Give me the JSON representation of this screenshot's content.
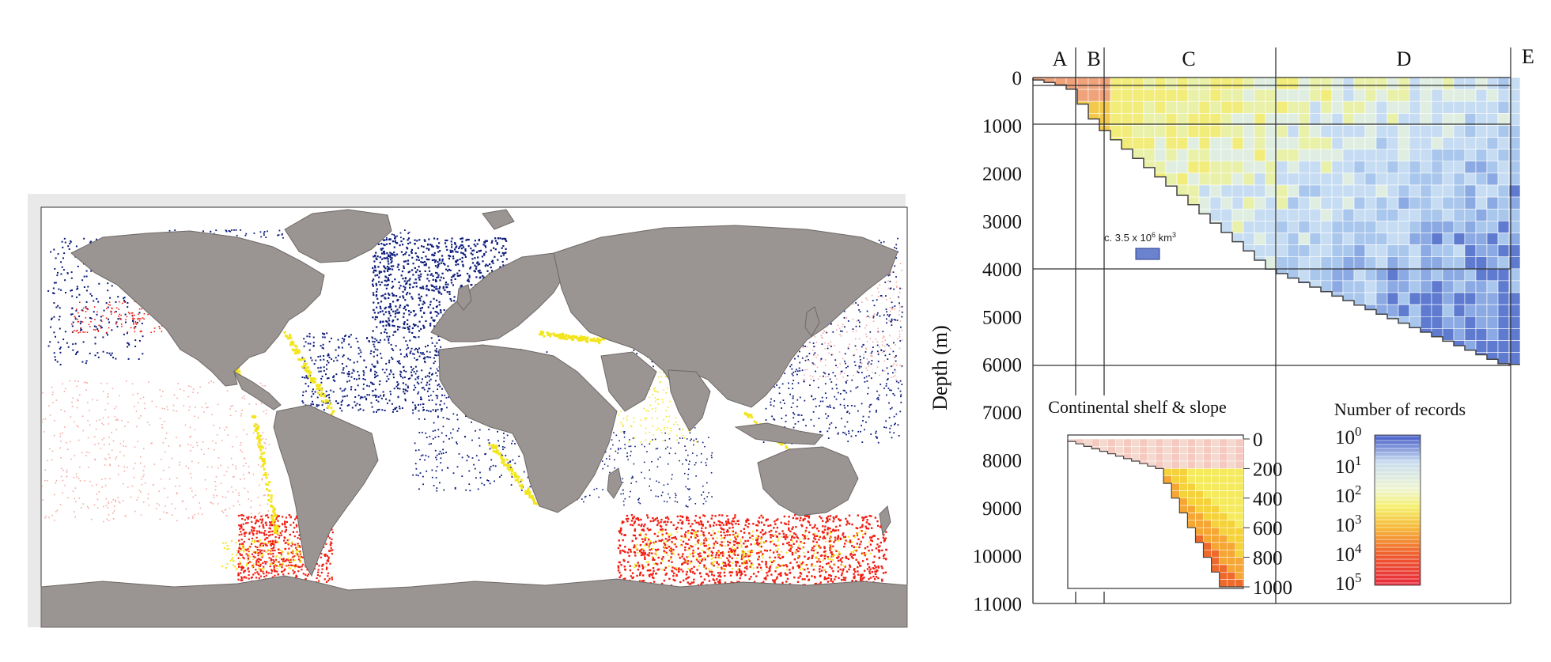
{
  "map": {
    "legend_colors": {
      "ocean": "#ffffff",
      "land": "#9a9592",
      "low": "#0b1a7a",
      "mid": "#f3e51c",
      "high": "#f21c10",
      "light_high": "#f4a9a2"
    }
  },
  "chart_data": {
    "type": "heatmap",
    "title": "",
    "ylabel": "Depth (m)",
    "yticks": [
      "0",
      "1000",
      "2000",
      "3000",
      "4000",
      "5000",
      "6000",
      "7000",
      "8000",
      "9000",
      "10000",
      "11000"
    ],
    "ylim": [
      0,
      11000
    ],
    "zones": [
      "A",
      "B",
      "C",
      "D",
      "E"
    ],
    "volume_label_prefix": "c. 3.5 x 10",
    "volume_label_exp": "6",
    "volume_label_unit": " km",
    "volume_label_unit_exp": "3",
    "inset": {
      "title": "Continental shelf & slope",
      "yticks": [
        "0",
        "200",
        "400",
        "600",
        "800",
        "1000"
      ],
      "ylim": [
        0,
        1000
      ]
    },
    "colorbar": {
      "title": "Number of records",
      "base": "10",
      "exponents": [
        "0",
        "1",
        "2",
        "3",
        "4",
        "5"
      ],
      "colors": [
        "#3f57c6",
        "#c9dcf0",
        "#f5ef6a",
        "#f6b736",
        "#ef5a2d",
        "#e8283a"
      ]
    }
  }
}
